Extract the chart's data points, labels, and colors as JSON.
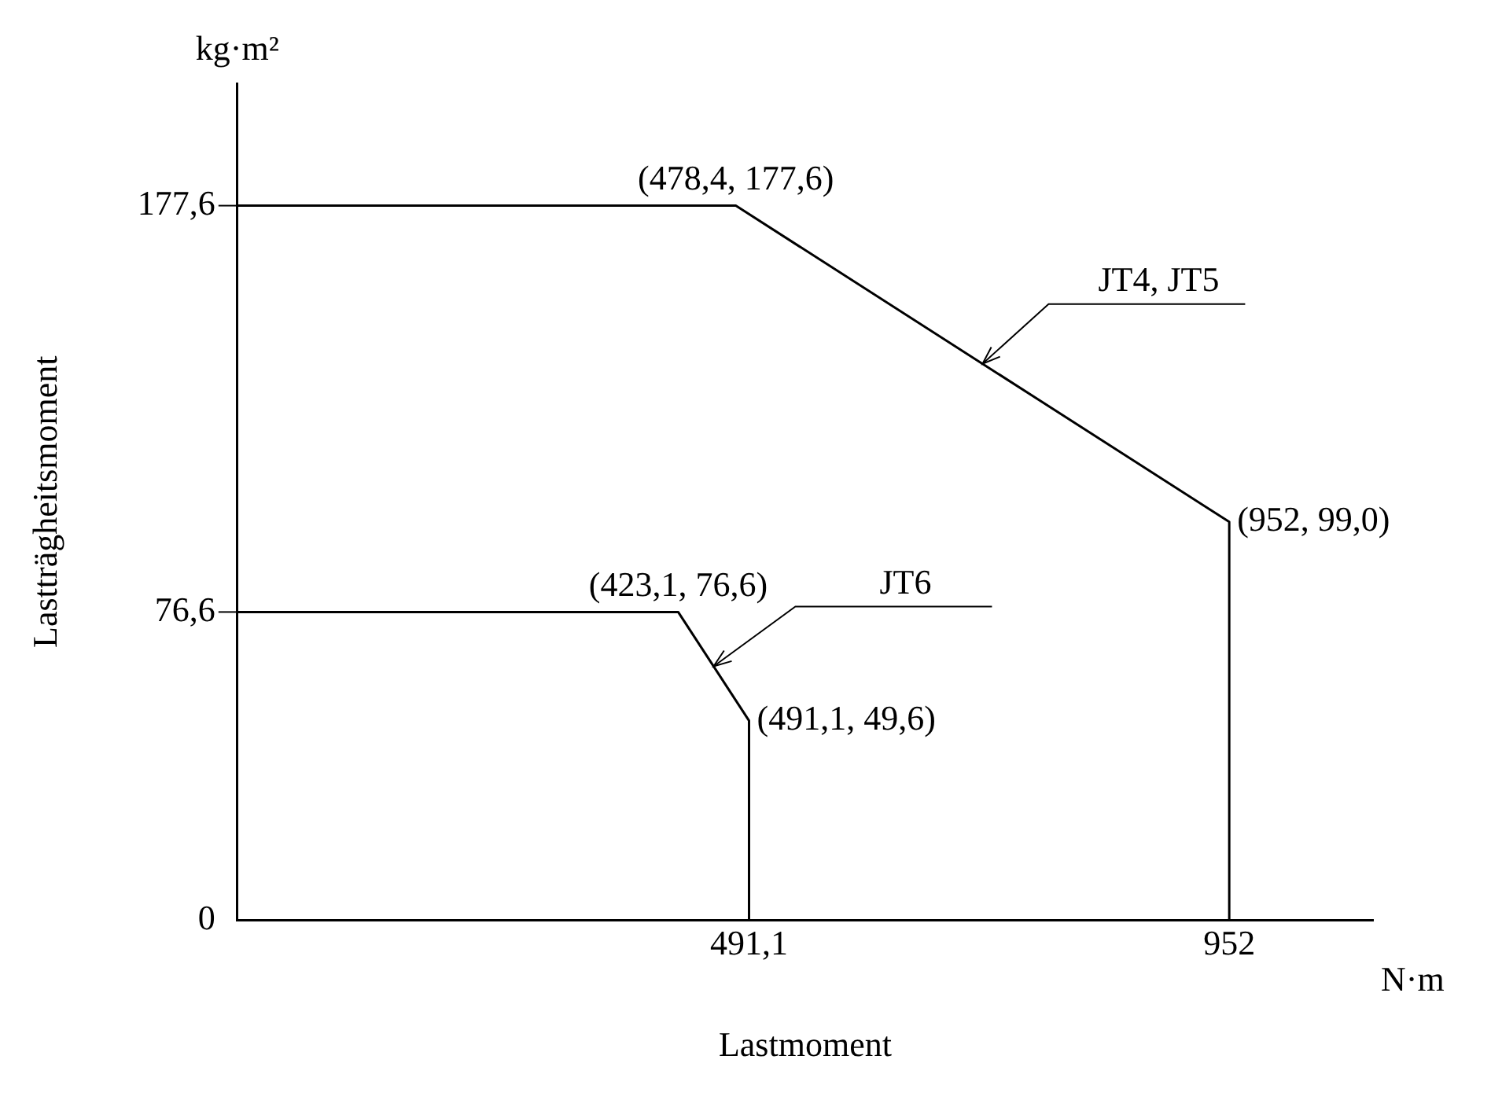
{
  "chart_data": {
    "type": "line",
    "xlabel": "Lastmoment",
    "ylabel": "Lastträgheitsmoment",
    "xlim": [
      0,
      1090
    ],
    "ylim": [
      0,
      208
    ],
    "xticks": [
      {
        "value": 491.1,
        "label": "491,1"
      },
      952
    ],
    "yticks": [
      0,
      {
        "value": 76.6,
        "label": "76,6"
      },
      {
        "value": 177.6,
        "label": "177,6"
      }
    ],
    "grid": false,
    "legend": false,
    "marker": "none",
    "line_style": "solid",
    "series": [
      {
        "name": "JT4, JT5",
        "color": "#000000",
        "x": [
          0,
          478.4,
          952,
          952
        ],
        "values": [
          177.6,
          177.6,
          99.0,
          0
        ]
      },
      {
        "name": "JT6",
        "color": "#000000",
        "x": [
          0,
          423.1,
          491.1,
          491.1
        ],
        "values": [
          76.6,
          76.6,
          49.6,
          0
        ]
      }
    ],
    "annotations": [
      "kg·m²",
      "N·m",
      {
        "text": "(478,4, 177,6)",
        "x": 478.4,
        "y": 177.6
      },
      {
        "text": "(952, 99,0)",
        "x": 952,
        "y": 99.0
      },
      {
        "text": "(423,1, 76,6)",
        "x": 423.1,
        "y": 76.6
      },
      {
        "text": "(491,1, 49,6)",
        "x": 491.1,
        "y": 49.6
      }
    ]
  }
}
